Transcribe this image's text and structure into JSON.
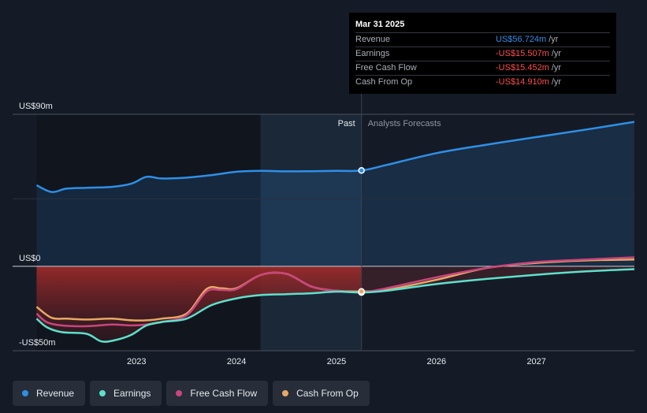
{
  "chart_data": {
    "type": "line",
    "ylim": [
      -50,
      90
    ],
    "y_ticks": [
      {
        "value": 90,
        "label": "US$90m"
      },
      {
        "value": 0,
        "label": "US$0"
      },
      {
        "value": -50,
        "label": "-US$50m"
      }
    ],
    "x_ticks": [
      {
        "value": 2023,
        "label": "2023"
      },
      {
        "value": 2024,
        "label": "2024"
      },
      {
        "value": 2025,
        "label": "2025"
      },
      {
        "value": 2026,
        "label": "2026"
      },
      {
        "value": 2027,
        "label": "2027"
      }
    ],
    "xlim": [
      2021.76,
      2027.98
    ],
    "divider_x": 2025.25,
    "past_label": "Past",
    "forecast_label": "Analysts Forecasts",
    "grid": true,
    "legend_position": "bottom-left",
    "series": [
      {
        "name": "Revenue",
        "color": "#2f8fe6",
        "points": [
          [
            2022.0,
            48
          ],
          [
            2022.15,
            44
          ],
          [
            2022.3,
            46
          ],
          [
            2022.5,
            46.5
          ],
          [
            2022.75,
            47
          ],
          [
            2022.95,
            49
          ],
          [
            2023.1,
            53
          ],
          [
            2023.25,
            52
          ],
          [
            2023.5,
            52.5
          ],
          [
            2023.75,
            54
          ],
          [
            2024.0,
            56
          ],
          [
            2024.25,
            56.5
          ],
          [
            2024.5,
            56.2
          ],
          [
            2024.75,
            56.3
          ],
          [
            2025.0,
            56.5
          ],
          [
            2025.25,
            56.724
          ],
          [
            2025.5,
            60
          ],
          [
            2026.0,
            67
          ],
          [
            2026.5,
            72
          ],
          [
            2027.0,
            76.5
          ],
          [
            2027.5,
            81
          ],
          [
            2027.98,
            85.5
          ]
        ]
      },
      {
        "name": "Earnings",
        "color": "#5ee0cc",
        "points": [
          [
            2022.0,
            -31
          ],
          [
            2022.1,
            -36
          ],
          [
            2022.25,
            -39
          ],
          [
            2022.5,
            -40
          ],
          [
            2022.65,
            -44.5
          ],
          [
            2022.8,
            -43.5
          ],
          [
            2022.95,
            -40.5
          ],
          [
            2023.1,
            -35
          ],
          [
            2023.25,
            -33
          ],
          [
            2023.5,
            -31
          ],
          [
            2023.75,
            -23
          ],
          [
            2024.0,
            -19
          ],
          [
            2024.25,
            -17
          ],
          [
            2024.5,
            -16.5
          ],
          [
            2024.75,
            -16
          ],
          [
            2025.0,
            -15
          ],
          [
            2025.25,
            -15.507
          ],
          [
            2025.5,
            -14.5
          ],
          [
            2026.0,
            -10.5
          ],
          [
            2026.5,
            -7.5
          ],
          [
            2027.0,
            -5
          ],
          [
            2027.5,
            -3
          ],
          [
            2027.98,
            -1.7
          ]
        ]
      },
      {
        "name": "Free Cash Flow",
        "color": "#c8467e",
        "points": [
          [
            2022.0,
            -28
          ],
          [
            2022.1,
            -33
          ],
          [
            2022.25,
            -35
          ],
          [
            2022.5,
            -35.5
          ],
          [
            2022.75,
            -34.5
          ],
          [
            2022.95,
            -35
          ],
          [
            2023.1,
            -34.5
          ],
          [
            2023.25,
            -33
          ],
          [
            2023.5,
            -29
          ],
          [
            2023.7,
            -15
          ],
          [
            2023.85,
            -14
          ],
          [
            2024.0,
            -13.5
          ],
          [
            2024.25,
            -5
          ],
          [
            2024.5,
            -4.5
          ],
          [
            2024.75,
            -12
          ],
          [
            2025.0,
            -14.5
          ],
          [
            2025.25,
            -15.452
          ],
          [
            2025.5,
            -13
          ],
          [
            2026.0,
            -6.5
          ],
          [
            2026.5,
            -1
          ],
          [
            2027.0,
            2.5
          ],
          [
            2027.5,
            4
          ],
          [
            2027.98,
            5.3
          ]
        ]
      },
      {
        "name": "Cash From Op",
        "color": "#e8a865",
        "points": [
          [
            2022.0,
            -24
          ],
          [
            2022.15,
            -30.5
          ],
          [
            2022.3,
            -31
          ],
          [
            2022.5,
            -31.5
          ],
          [
            2022.75,
            -31
          ],
          [
            2022.95,
            -32
          ],
          [
            2023.1,
            -32
          ],
          [
            2023.25,
            -31
          ],
          [
            2023.5,
            -28
          ],
          [
            2023.7,
            -13.5
          ],
          [
            2023.85,
            -13
          ],
          [
            2024.0,
            -13
          ],
          [
            2024.25,
            -5
          ],
          [
            2024.5,
            -4.5
          ],
          [
            2024.75,
            -12
          ],
          [
            2025.0,
            -14.5
          ],
          [
            2025.25,
            -14.91
          ],
          [
            2025.5,
            -14
          ],
          [
            2026.0,
            -8
          ],
          [
            2026.5,
            -1
          ],
          [
            2027.0,
            2
          ],
          [
            2027.5,
            3.5
          ],
          [
            2027.98,
            4
          ]
        ]
      }
    ]
  },
  "tooltip": {
    "date": "Mar 31 2025",
    "rows": [
      {
        "label": "Revenue",
        "value": "US$56.724m",
        "unit": "/yr",
        "color": "#2f8fe6"
      },
      {
        "label": "Earnings",
        "value": "-US$15.507m",
        "unit": "/yr",
        "color": "#ff4d4d"
      },
      {
        "label": "Free Cash Flow",
        "value": "-US$15.452m",
        "unit": "/yr",
        "color": "#ff4d4d"
      },
      {
        "label": "Cash From Op",
        "value": "-US$14.910m",
        "unit": "/yr",
        "color": "#ff4d4d"
      }
    ]
  },
  "legend": [
    {
      "label": "Revenue",
      "color": "#2f8fe6"
    },
    {
      "label": "Earnings",
      "color": "#5ee0cc"
    },
    {
      "label": "Free Cash Flow",
      "color": "#c8467e"
    },
    {
      "label": "Cash From Op",
      "color": "#e8a865"
    }
  ]
}
